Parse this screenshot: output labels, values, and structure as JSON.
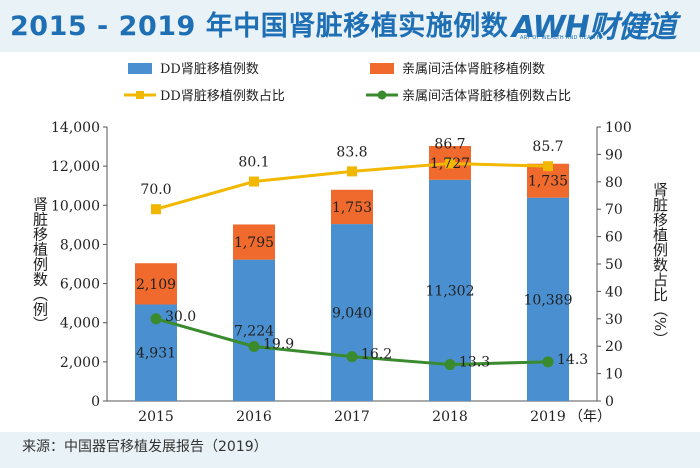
{
  "title": "2015 - 2019 年中国肾脏移植实施例数",
  "logo": {
    "main": "AWH财健道",
    "sub": "ART OF WEALTH AND HEALTH"
  },
  "source": "来源：中国器官移植发展报告（2019）",
  "colors": {
    "dd_bar": "#4a90d0",
    "living_bar": "#ef6a2c",
    "dd_line": "#f2b800",
    "living_line": "#3a8a2e",
    "title": "#1f6fb5"
  },
  "chart_data": {
    "type": "bar",
    "stacked": true,
    "categories": [
      "2015",
      "2016",
      "2017",
      "2018",
      "2019"
    ],
    "x_unit": "（年）",
    "ylabel_left": "肾脏移植例数（例）",
    "ylabel_right": "肾脏移植例数占比（%）",
    "ylim_left": [
      0,
      14000
    ],
    "ylim_right": [
      0,
      100
    ],
    "yticks_left": [
      "0",
      "2,000",
      "4,000",
      "6,000",
      "8,000",
      "10,000",
      "12,000",
      "14,000"
    ],
    "yticks_right": [
      "0",
      "10",
      "20",
      "30",
      "40",
      "50",
      "60",
      "70",
      "80",
      "90",
      "100"
    ],
    "legend": [
      "DD肾脏移植例数",
      "亲属间活体肾脏移植例数",
      "DD肾脏移植例数占比",
      "亲属间活体肾脏移植例数占比"
    ],
    "bar_series": [
      {
        "name": "DD肾脏移植例数",
        "values": [
          4931,
          7224,
          9040,
          11302,
          10389
        ],
        "labels": [
          "4,931",
          "7,224",
          "9,040",
          "11,302",
          "10,389"
        ]
      },
      {
        "name": "亲属间活体肾脏移植例数",
        "values": [
          2109,
          1795,
          1753,
          1727,
          1735
        ],
        "labels": [
          "2,109",
          "1,795",
          "1,753",
          "1,727",
          "1,735"
        ]
      }
    ],
    "line_series": [
      {
        "name": "DD肾脏移植例数占比",
        "values": [
          70.0,
          80.1,
          83.8,
          86.7,
          85.7
        ],
        "labels": [
          "70.0",
          "80.1",
          "83.8",
          "86.7",
          "85.7"
        ]
      },
      {
        "name": "亲属间活体肾脏移植例数占比",
        "values": [
          30.0,
          19.9,
          16.2,
          13.3,
          14.3
        ],
        "labels": [
          "30.0",
          "19.9",
          "16.2",
          "13.3",
          "14.3"
        ]
      }
    ]
  }
}
